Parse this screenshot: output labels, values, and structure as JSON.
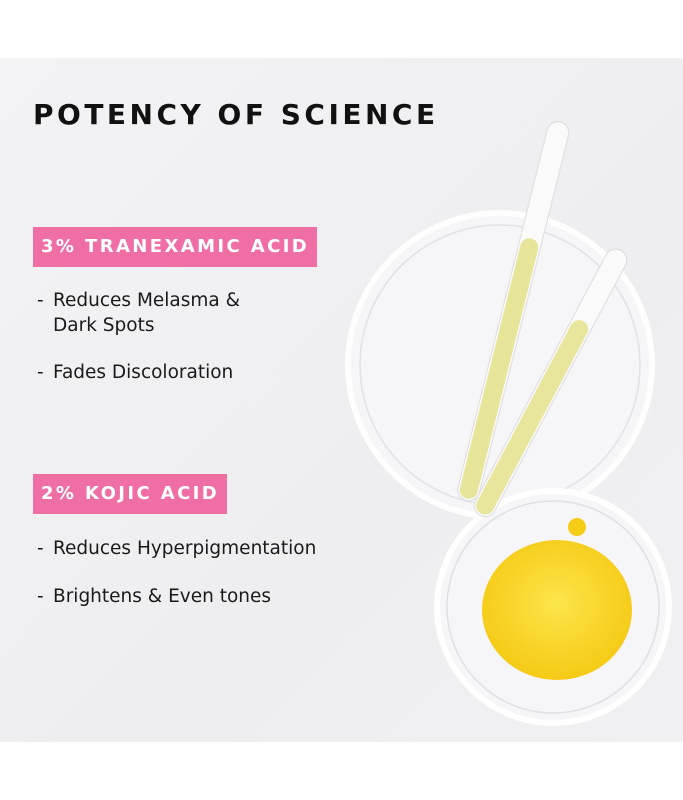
{
  "title": "POTENCY OF SCIENCE",
  "sections": [
    {
      "tag": "3% TRANEXAMIC ACID",
      "bullets": [
        {
          "line1": "Reduces Melasma &",
          "line2": "Dark Spots"
        },
        {
          "line1": "Fades Discoloration"
        }
      ]
    },
    {
      "tag": "2% KOJIC ACID",
      "bullets": [
        {
          "line1": "Reduces Hyperpigmentation"
        },
        {
          "line1": "Brightens & Even tones"
        }
      ]
    }
  ],
  "colors": {
    "accent": "#ef6fa5",
    "serum": "#f7d21c",
    "tube_liquid": "#e6e59a"
  }
}
